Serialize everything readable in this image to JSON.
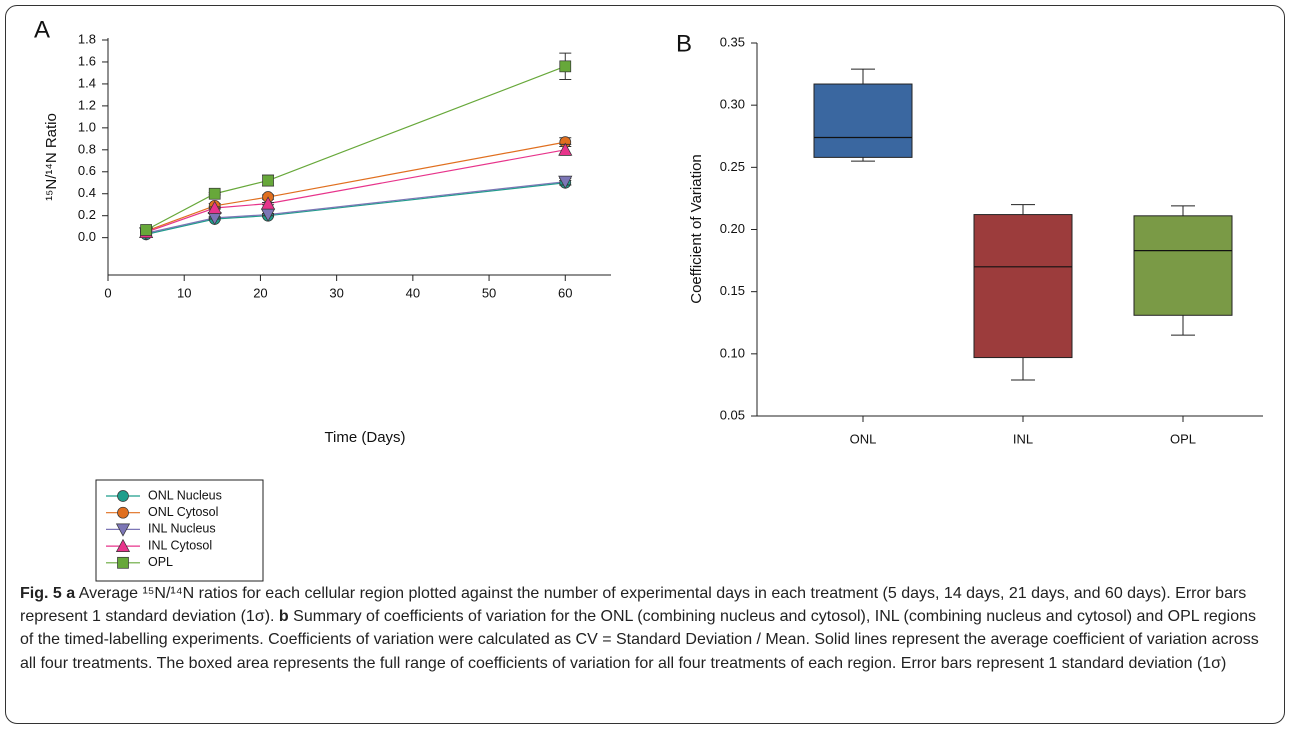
{
  "chart_data": [
    {
      "type": "line",
      "panel_label": "A",
      "xlabel": "Time (Days)",
      "ylabel": "¹⁵N/¹⁴N Ratio",
      "x": [
        5,
        14,
        21,
        60
      ],
      "xlim": [
        0,
        66
      ],
      "xticks": [
        0,
        10,
        20,
        30,
        40,
        50,
        60
      ],
      "ylim": [
        -0.34,
        1.8
      ],
      "yticks": [
        {
          "value": 0,
          "label": "0.0"
        },
        0.2,
        0.4,
        0.6,
        0.8,
        {
          "value": 1,
          "label": "1.0"
        },
        1.2,
        1.4,
        1.6,
        1.8
      ],
      "series": [
        {
          "name": "ONL Nucleus",
          "color": "#1f9e8c",
          "marker": "circle",
          "values": [
            0.03,
            0.17,
            0.2,
            0.5
          ],
          "errors": [
            0.01,
            0.01,
            0.01,
            0.02
          ]
        },
        {
          "name": "ONL Cytosol",
          "color": "#e06f1f",
          "marker": "circle",
          "values": [
            0.06,
            0.29,
            0.37,
            0.87
          ],
          "errors": [
            0.01,
            0.02,
            0.02,
            0.04
          ]
        },
        {
          "name": "INL Nucleus",
          "color": "#7c76b6",
          "marker": "triangle-down",
          "values": [
            0.04,
            0.18,
            0.21,
            0.51
          ],
          "errors": [
            0.01,
            0.01,
            0.01,
            0.03
          ]
        },
        {
          "name": "INL Cytosol",
          "color": "#e7348b",
          "marker": "triangle-up",
          "values": [
            0.05,
            0.27,
            0.31,
            0.8
          ],
          "errors": [
            0.01,
            0.01,
            0.01,
            0.05
          ]
        },
        {
          "name": "OPL",
          "color": "#67a83a",
          "marker": "square",
          "values": [
            0.07,
            0.4,
            0.52,
            1.56
          ],
          "errors": [
            0.01,
            0.01,
            0.05,
            0.12
          ]
        }
      ]
    },
    {
      "type": "box",
      "panel_label": "B",
      "ylabel": "Coefficient of Variation",
      "categories": [
        "ONL",
        "INL",
        "OPL"
      ],
      "colors": [
        "#3a67a0",
        "#9c3c3c",
        "#7a9a46"
      ],
      "min": [
        0.255,
        0.079,
        0.115
      ],
      "q1": [
        0.258,
        0.097,
        0.131
      ],
      "median": [
        0.274,
        0.17,
        0.183
      ],
      "q3": [
        0.317,
        0.212,
        0.211
      ],
      "max": [
        0.329,
        0.22,
        0.219
      ],
      "ylim": [
        0.05,
        0.35
      ],
      "yticks": [
        0.05,
        {
          "value": 0.1,
          "label": "0.10"
        },
        0.15,
        {
          "value": 0.2,
          "label": "0.20"
        },
        0.25,
        {
          "value": 0.3,
          "label": "0.30"
        },
        0.35
      ]
    }
  ],
  "caption": {
    "label": "Fig. 5",
    "a_label": "a",
    "a_text": "Average ¹⁵N/¹⁴N ratios for each cellular region plotted against the number of experimental days in each treatment (5 days, 14 days, 21 days, and 60 days). Error bars represent 1 standard deviation (1σ).",
    "b_label": "b",
    "b_text": "Summary of coefficients of variation for the ONL (combining nucleus and cytosol), INL (combining nucleus and cytosol) and OPL regions of the timed-labelling experiments. Coefficients of variation were calculated as CV = Standard Deviation / Mean. Solid lines represent the average coefficient of variation across all four treatments. The boxed area represents the full range of coefficients of variation for all four treatments of each region. Error bars represent 1 standard deviation (1σ)"
  }
}
